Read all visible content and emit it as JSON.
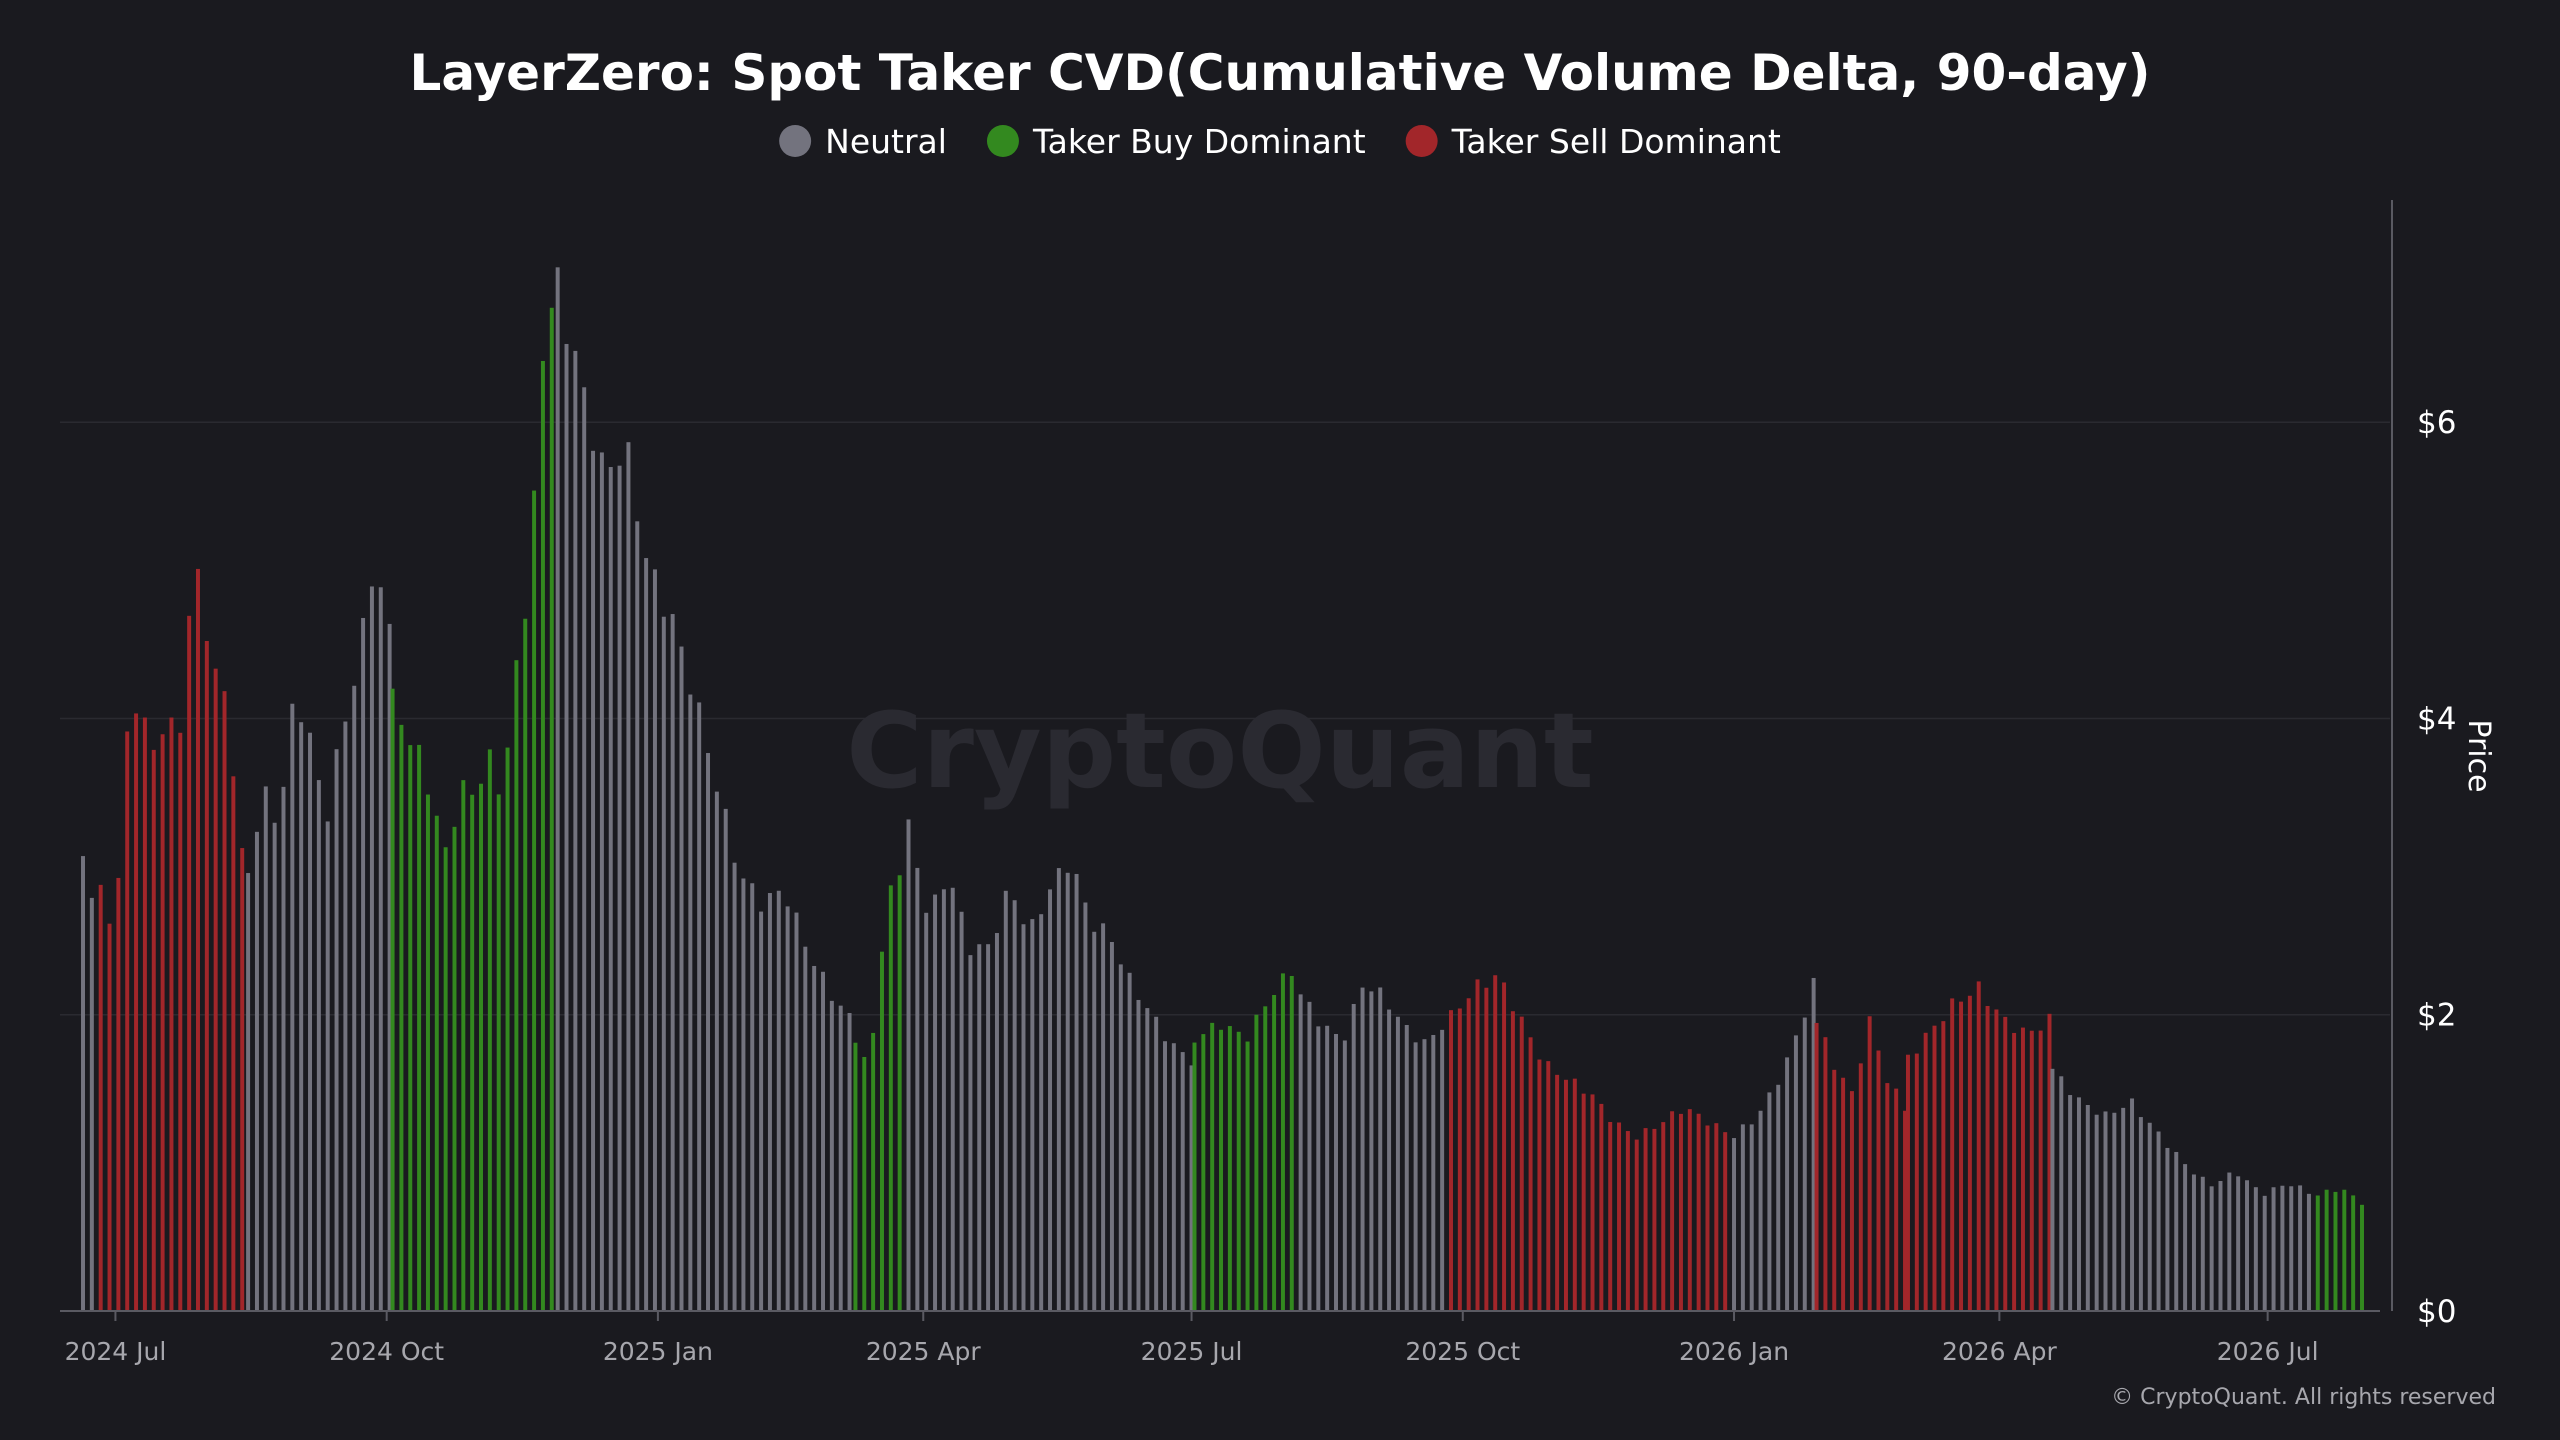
{
  "chart_data": {
    "type": "bar",
    "title": "LayerZero: Spot Taker CVD(Cumulative Volume Delta, 90-day)",
    "ylabel": "Price",
    "ylim": [
      0,
      7.5
    ],
    "y_ticks": [
      "$0",
      "$2",
      "$4",
      "$6"
    ],
    "x_ticks": [
      "2024 Jul",
      "2024 Oct",
      "2025 Jan",
      "2025 Apr",
      "2025 Jul",
      "2025 Oct",
      "2026 Jan",
      "2026 Apr",
      "2026 Jul"
    ],
    "x_range": [
      "2024-06-20",
      "2026-08-02"
    ],
    "grid": "horizontal",
    "legend_position": "top-center",
    "legend": [
      {
        "name": "Neutral",
        "color": "#73737e"
      },
      {
        "name": "Taker Buy Dominant",
        "color": "#33891f"
      },
      {
        "name": "Taker Sell Dominant",
        "color": "#a2262a"
      }
    ],
    "segments": [
      {
        "start": "2024-06-20",
        "end": "2024-06-25",
        "class": "Neutral",
        "prices": [
          3.0,
          2.7
        ]
      },
      {
        "start": "2024-06-26",
        "end": "2024-08-14",
        "class": "Taker Sell Dominant",
        "prices": [
          2.8,
          2.5,
          3.8,
          4.2,
          3.7,
          4.1,
          3.8,
          5.2,
          4.6,
          4.4,
          3.8,
          3.0
        ]
      },
      {
        "start": "2024-08-15",
        "end": "2024-10-02",
        "class": "Neutral",
        "prices": [
          3.0,
          3.5,
          3.3,
          4.2,
          3.8,
          3.3,
          3.9,
          4.3,
          5.0,
          4.5
        ]
      },
      {
        "start": "2024-10-03",
        "end": "2024-11-27",
        "class": "Taker Buy Dominant",
        "prices": [
          4.2,
          4.0,
          3.8,
          3.5,
          3.1,
          3.6,
          3.5,
          3.8,
          3.5,
          4.2,
          4.9,
          6.2,
          7.1
        ]
      },
      {
        "start": "2024-11-28",
        "end": "2025-03-08",
        "class": "Neutral",
        "prices": [
          6.8,
          6.2,
          5.6,
          5.8,
          5.0,
          4.7,
          4.2,
          3.6,
          3.0,
          2.8,
          2.9,
          2.5,
          2.2,
          2.0
        ]
      },
      {
        "start": "2025-03-09",
        "end": "2025-03-26",
        "class": "Taker Buy Dominant",
        "prices": [
          1.8,
          1.6,
          2.3,
          2.9,
          3.0
        ]
      },
      {
        "start": "2025-03-27",
        "end": "2025-07-01",
        "class": "Neutral",
        "prices": [
          3.2,
          2.6,
          2.9,
          2.4,
          2.4,
          2.8,
          2.5,
          2.8,
          3.0,
          2.6,
          2.5,
          2.2,
          2.0,
          1.8,
          1.7
        ]
      },
      {
        "start": "2025-07-02",
        "end": "2025-08-06",
        "class": "Taker Buy Dominant",
        "prices": [
          1.8,
          1.9,
          1.8,
          2.1,
          2.3
        ]
      },
      {
        "start": "2025-08-07",
        "end": "2025-09-26",
        "class": "Neutral",
        "prices": [
          2.1,
          1.9,
          1.8,
          2.2,
          2.1,
          1.9,
          1.8,
          2.0
        ]
      },
      {
        "start": "2025-09-27",
        "end": "2025-12-31",
        "class": "Taker Sell Dominant",
        "prices": [
          2.0,
          2.2,
          2.3,
          2.0,
          1.7,
          1.6,
          1.5,
          1.3,
          1.2,
          1.3,
          1.4,
          1.3,
          1.2
        ]
      },
      {
        "start": "2026-01-01",
        "end": "2026-01-28",
        "class": "Neutral",
        "prices": [
          1.2,
          1.3,
          1.5,
          1.8,
          2.2
        ]
      },
      {
        "start": "2026-01-29",
        "end": "2026-02-28",
        "class": "Taker Sell Dominant",
        "prices": [
          2.0,
          1.7,
          1.5,
          2.0,
          1.6,
          1.4
        ]
      },
      {
        "start": "2026-03-01",
        "end": "2026-04-18",
        "class": "Taker Sell Dominant",
        "prices": [
          1.7,
          1.9,
          2.1,
          2.2,
          2.0,
          1.9,
          2.0
        ]
      },
      {
        "start": "2026-04-19",
        "end": "2026-07-17",
        "class": "Neutral",
        "prices": [
          1.6,
          1.4,
          1.3,
          1.4,
          1.2,
          1.0,
          0.85,
          0.95,
          0.8,
          0.88,
          0.8
        ]
      },
      {
        "start": "2026-07-18",
        "end": "2026-08-02",
        "class": "Taker Buy Dominant",
        "prices": [
          0.8,
          0.85,
          0.75
        ]
      }
    ]
  },
  "watermark": "CryptoQuant",
  "footer": "© CryptoQuant. All rights reserved"
}
